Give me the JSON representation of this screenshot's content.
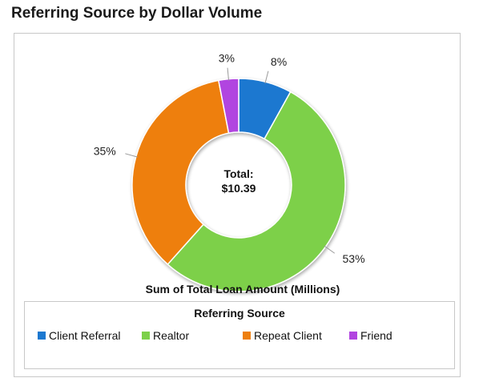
{
  "header": {
    "title": "Referring Source by Dollar Volume"
  },
  "legend": {
    "title": "Referring Source"
  },
  "chart_data": {
    "type": "pie",
    "variant": "donut",
    "title": "Referring Source by Dollar Volume",
    "xlabel": "Sum of Total Loan Amount (Millions)",
    "center_label": {
      "line1": "Total:",
      "line2": "$10.39"
    },
    "slices": [
      {
        "name": "Client Referral",
        "value": 8,
        "label": "8%",
        "color": "#1b78d0"
      },
      {
        "name": "Realtor",
        "value": 53,
        "label": "53%",
        "color": "#7dd04a"
      },
      {
        "name": "Repeat Client",
        "value": 35,
        "label": "35%",
        "color": "#ee7f0e"
      },
      {
        "name": "Friend",
        "value": 3,
        "label": "3%",
        "color": "#b144e0"
      }
    ],
    "legend_position": "bottom"
  }
}
